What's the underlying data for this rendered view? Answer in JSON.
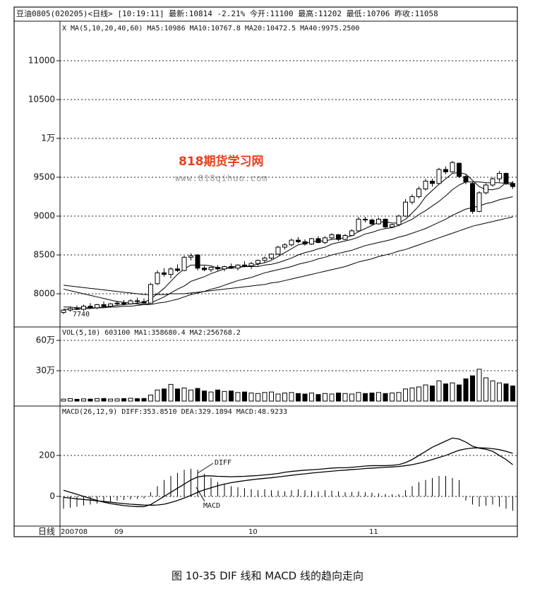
{
  "chart_data": {
    "type": "candlestick",
    "header": "豆油0805(020205)<日线> [10:19:11] 最新:10814 -2.21% 今开:11100 最高:11202 最低:10706 昨收:11058",
    "price_legend": "X  MA(5,10,20,40,60) MA5:10986 MA10:10767.8 MA20:10472.5 MA40:9975.2500",
    "volume_legend": "VOL(5,10) 603100 MA1:358680.4 MA2:256768.2",
    "macd_legend": "MACD(26,12,9) DIFF:353.8510 DEA:329.1894 MACD:48.9233",
    "period_label": "日线",
    "caption": "图 10-35   DIF 线和 MACD 线的趋向走向",
    "watermark": "818期货学习网",
    "watermark_url": "www.818qihuo.com",
    "low_annotation": "7740",
    "diff_annotation": "DIFF",
    "macd_annotation": "MACD",
    "grid": true,
    "categories": [
      "200708",
      null,
      null,
      null,
      null,
      null,
      null,
      null,
      "09",
      null,
      null,
      null,
      null,
      null,
      null,
      null,
      null,
      null,
      null,
      null,
      null,
      null,
      null,
      null,
      null,
      null,
      null,
      null,
      "10",
      null,
      null,
      null,
      null,
      null,
      null,
      null,
      null,
      null,
      null,
      null,
      null,
      null,
      null,
      null,
      null,
      null,
      "11",
      null,
      null,
      null,
      null,
      null,
      null,
      null,
      null,
      null,
      null,
      null,
      null,
      null,
      null,
      null,
      null,
      null,
      null,
      null,
      null,
      null
    ],
    "ylim": [
      7573,
      11509
    ],
    "yticks": [
      8000,
      8500,
      9000,
      9500,
      {
        "value": 10000,
        "label": "1万"
      },
      10500,
      11000
    ],
    "open": [
      7760,
      7790,
      7810,
      7800,
      7840,
      7820,
      7860,
      7840,
      7870,
      7880,
      7870,
      7910,
      7900,
      7880,
      8130,
      8270,
      8250,
      8320,
      8300,
      8470,
      8500,
      8330,
      8310,
      8340,
      8320,
      8350,
      8330,
      8370,
      8360,
      8390,
      8430,
      8460,
      8510,
      8600,
      8630,
      8690,
      8670,
      8640,
      8710,
      8660,
      8720,
      8760,
      8700,
      8750,
      8810,
      8960,
      8950,
      8900,
      8960,
      8860,
      8890,
      9000,
      9180,
      9250,
      9350,
      9450,
      9420,
      9600,
      9570,
      9680,
      9510,
      9420,
      9060,
      9300,
      9400,
      9480,
      9550,
      9420
    ],
    "high": [
      7800,
      7830,
      7850,
      7860,
      7880,
      7870,
      7900,
      7880,
      7910,
      7920,
      7930,
      7950,
      7940,
      8140,
      8300,
      8330,
      8340,
      8380,
      8490,
      8520,
      8510,
      8360,
      8350,
      8370,
      8360,
      8390,
      8380,
      8420,
      8410,
      8440,
      8480,
      8520,
      8620,
      8650,
      8710,
      8730,
      8700,
      8720,
      8740,
      8740,
      8780,
      8770,
      8770,
      8830,
      8990,
      8990,
      8970,
      8980,
      8970,
      8900,
      9020,
      9220,
      9280,
      9380,
      9480,
      9480,
      9620,
      9640,
      9710,
      9690,
      9530,
      9440,
      9320,
      9420,
      9500,
      9580,
      9560,
      9450
    ],
    "low": [
      7740,
      7770,
      7790,
      7780,
      7810,
      7800,
      7830,
      7820,
      7850,
      7850,
      7860,
      7880,
      7860,
      7870,
      8110,
      8220,
      8200,
      8280,
      8290,
      8430,
      8300,
      8290,
      8280,
      8300,
      8290,
      8320,
      8300,
      8340,
      8320,
      8360,
      8400,
      8440,
      8500,
      8570,
      8610,
      8650,
      8620,
      8630,
      8650,
      8640,
      8700,
      8680,
      8690,
      8740,
      8800,
      8920,
      8880,
      8890,
      8840,
      8850,
      8870,
      8990,
      9150,
      9230,
      9330,
      9380,
      9410,
      9540,
      9560,
      9490,
      9410,
      9030,
      9050,
      9280,
      9380,
      9440,
      9400,
      9350
    ],
    "close": [
      7790,
      7810,
      7800,
      7840,
      7820,
      7860,
      7840,
      7870,
      7880,
      7870,
      7910,
      7900,
      7880,
      8120,
      8270,
      8250,
      8320,
      8300,
      8470,
      8490,
      8330,
      8310,
      8340,
      8320,
      8350,
      8330,
      8370,
      8360,
      8390,
      8430,
      8460,
      8510,
      8600,
      8630,
      8690,
      8670,
      8640,
      8710,
      8660,
      8720,
      8760,
      8700,
      8750,
      8810,
      8960,
      8950,
      8900,
      8960,
      8860,
      8890,
      9000,
      9180,
      9250,
      9350,
      9450,
      9420,
      9600,
      9570,
      9690,
      9510,
      9440,
      9060,
      9300,
      9400,
      9480,
      9550,
      9420,
      9380
    ],
    "series": [
      {
        "name": "MA5",
        "color": "#000000",
        "values": [
          7800,
          7800,
          7800,
          7810,
          7810,
          7820,
          7830,
          7840,
          7850,
          7860,
          7870,
          7880,
          7890,
          7930,
          8000,
          8070,
          8160,
          8250,
          8320,
          8370,
          8370,
          8370,
          8360,
          8330,
          8330,
          8330,
          8340,
          8350,
          8360,
          8380,
          8400,
          8430,
          8480,
          8530,
          8580,
          8630,
          8650,
          8670,
          8680,
          8680,
          8700,
          8710,
          8720,
          8750,
          8800,
          8840,
          8880,
          8920,
          8930,
          8910,
          8910,
          8960,
          9040,
          9130,
          9250,
          9330,
          9410,
          9480,
          9550,
          9560,
          9540,
          9460,
          9380,
          9340,
          9340,
          9360,
          9430,
          9430
        ]
      },
      {
        "name": "MA10",
        "color": "#000000",
        "values": [
          7830,
          7830,
          7820,
          7820,
          7820,
          7820,
          7820,
          7830,
          7830,
          7840,
          7840,
          7850,
          7860,
          7880,
          7920,
          7960,
          8010,
          8060,
          8100,
          8160,
          8190,
          8220,
          8260,
          8290,
          8320,
          8350,
          8350,
          8350,
          8350,
          8350,
          8370,
          8380,
          8400,
          8430,
          8460,
          8500,
          8530,
          8550,
          8580,
          8600,
          8640,
          8660,
          8680,
          8700,
          8730,
          8770,
          8790,
          8820,
          8840,
          8850,
          8880,
          8920,
          8960,
          9020,
          9070,
          9130,
          9190,
          9260,
          9340,
          9400,
          9440,
          9440,
          9440,
          9430,
          9430,
          9430,
          9420,
          9400
        ]
      },
      {
        "name": "MA20",
        "color": "#000000",
        "values": [
          8060,
          8040,
          8020,
          8000,
          7980,
          7960,
          7940,
          7920,
          7900,
          7890,
          7880,
          7870,
          7860,
          7860,
          7880,
          7890,
          7910,
          7930,
          7960,
          7990,
          8010,
          8030,
          8060,
          8080,
          8110,
          8140,
          8170,
          8190,
          8210,
          8240,
          8270,
          8290,
          8310,
          8330,
          8350,
          8380,
          8400,
          8420,
          8450,
          8470,
          8500,
          8520,
          8540,
          8560,
          8590,
          8620,
          8640,
          8660,
          8680,
          8700,
          8730,
          8750,
          8780,
          8810,
          8840,
          8880,
          8920,
          8960,
          9010,
          9050,
          9090,
          9110,
          9130,
          9160,
          9180,
          9210,
          9230,
          9250
        ]
      },
      {
        "name": "MA40",
        "color": "#000000",
        "values": [
          8110,
          8100,
          8090,
          8080,
          8070,
          8060,
          8050,
          8040,
          8030,
          8020,
          8010,
          8000,
          7990,
          7990,
          7990,
          7990,
          8000,
          8000,
          8000,
          8010,
          8020,
          8030,
          8040,
          8050,
          8060,
          8070,
          8080,
          8090,
          8100,
          8110,
          8120,
          8140,
          8150,
          8170,
          8190,
          8210,
          8230,
          8250,
          8270,
          8290,
          8310,
          8330,
          8350,
          8380,
          8410,
          8430,
          8450,
          8480,
          8500,
          8520,
          8550,
          8570,
          8600,
          8630,
          8660,
          8690,
          8720,
          8750,
          8780,
          8810,
          8840,
          8870,
          8890,
          8910,
          8930,
          8950,
          8970,
          8990
        ]
      }
    ],
    "volume": {
      "ylim": [
        0,
        684000
      ],
      "yticks": [
        {
          "value": 300000,
          "label": "30万"
        },
        {
          "value": 600000,
          "label": "60万"
        }
      ],
      "values": [
        20000,
        25000,
        18000,
        22000,
        20000,
        24000,
        26000,
        20000,
        22000,
        25000,
        28000,
        24000,
        26000,
        60000,
        110000,
        120000,
        165000,
        120000,
        130000,
        110000,
        125000,
        100000,
        90000,
        110000,
        95000,
        100000,
        85000,
        90000,
        80000,
        75000,
        85000,
        90000,
        70000,
        80000,
        85000,
        75000,
        70000,
        80000,
        65000,
        75000,
        70000,
        80000,
        75000,
        70000,
        85000,
        75000,
        80000,
        85000,
        75000,
        80000,
        85000,
        120000,
        130000,
        140000,
        160000,
        150000,
        200000,
        170000,
        180000,
        160000,
        220000,
        250000,
        315000,
        230000,
        200000,
        180000,
        170000,
        150000
      ]
    },
    "macd": {
      "ylim": [
        -145,
        417
      ],
      "yticks": [
        0,
        200
      ],
      "diff": [
        30,
        20,
        10,
        0,
        -10,
        -20,
        -28,
        -35,
        -40,
        -45,
        -48,
        -50,
        -50,
        -40,
        -20,
        0,
        20,
        40,
        60,
        80,
        95,
        100,
        100,
        98,
        97,
        96,
        97,
        98,
        100,
        102,
        105,
        108,
        112,
        118,
        122,
        125,
        128,
        130,
        132,
        135,
        138,
        140,
        140,
        142,
        145,
        148,
        150,
        150,
        150,
        152,
        155,
        165,
        180,
        200,
        220,
        240,
        255,
        270,
        285,
        280,
        265,
        245,
        235,
        230,
        220,
        200,
        180,
        155
      ],
      "dea": [
        -5,
        -8,
        -12,
        -15,
        -18,
        -22,
        -25,
        -28,
        -32,
        -35,
        -38,
        -40,
        -42,
        -43,
        -42,
        -38,
        -30,
        -20,
        -8,
        5,
        20,
        32,
        42,
        52,
        60,
        67,
        72,
        77,
        81,
        85,
        88,
        91,
        95,
        99,
        103,
        107,
        110,
        114,
        117,
        120,
        123,
        126,
        128,
        131,
        133,
        136,
        138,
        140,
        142,
        144,
        146,
        150,
        155,
        162,
        170,
        180,
        190,
        200,
        213,
        225,
        232,
        236,
        237,
        236,
        233,
        228,
        220,
        210
      ],
      "bars": [
        -60,
        -55,
        -50,
        -45,
        -40,
        -35,
        -30,
        -25,
        -20,
        -18,
        -15,
        -12,
        -10,
        20,
        50,
        80,
        100,
        115,
        130,
        135,
        130,
        110,
        90,
        70,
        60,
        50,
        45,
        40,
        35,
        30,
        35,
        30,
        28,
        25,
        30,
        35,
        30,
        28,
        25,
        30,
        28,
        25,
        20,
        22,
        25,
        20,
        18,
        15,
        12,
        10,
        10,
        30,
        50,
        70,
        80,
        90,
        100,
        100,
        90,
        80,
        -20,
        -40,
        -50,
        -45,
        -40,
        -50,
        -60,
        -70
      ]
    }
  }
}
